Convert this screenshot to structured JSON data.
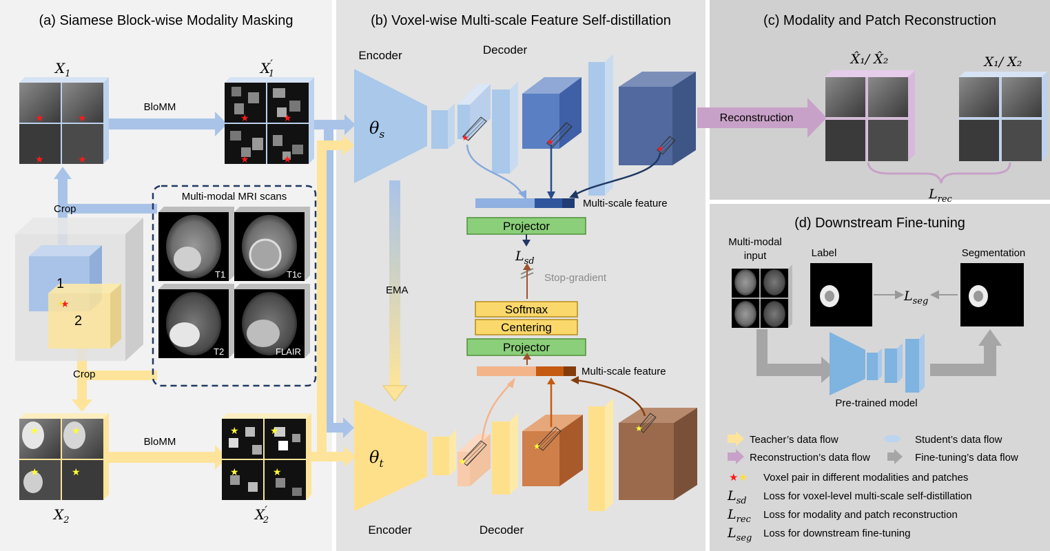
{
  "panels": {
    "a": {
      "title": "(a) Siamese Block-wise Modality Masking"
    },
    "b": {
      "title": "(b) Voxel-wise Multi-scale Feature Self-distillation"
    },
    "c": {
      "title": "(c) Modality and Patch Reconstruction"
    },
    "d": {
      "title": "(d) Downstream Fine-tuning"
    }
  },
  "labels": {
    "x1": "X",
    "x1_sub": "1",
    "x1p": "X",
    "x1p_sub": "1",
    "x1p_prime": "′",
    "x2": "X",
    "x2_sub": "2",
    "x2p": "X",
    "x2p_sub": "2",
    "x2p_prime": "′",
    "blomm_top": "BloMM",
    "blomm_bottom": "BloMM",
    "crop_top": "Crop",
    "crop_bottom": "Crop",
    "crop_region_1": "1",
    "crop_region_2": "2",
    "mri_title": "Multi-modal MRI scans",
    "mri_t1": "T1",
    "mri_t1c": "T1c",
    "mri_t2": "T2",
    "mri_flair": "FLAIR",
    "encoder_top": "Encoder",
    "decoder_top": "Decoder",
    "encoder_bottom": "Encoder",
    "decoder_bottom": "Decoder",
    "theta_s": "θ",
    "theta_s_sub": "s",
    "theta_t": "θ",
    "theta_t_sub": "t",
    "ema": "EMA",
    "ms_feature_top": "Multi-scale feature",
    "ms_feature_bottom": "Multi-scale feature",
    "projector_top": "Projector",
    "projector_bottom": "Projector",
    "softmax": "Softmax",
    "centering": "Centering",
    "lsd": "L",
    "lsd_sub": "sd",
    "stop_gradient": "Stop-gradient",
    "reconstruction": "Reconstruction",
    "xhat": "X̂₁/ X̂₂",
    "xorig": "X₁/ X₂",
    "lrec": "L",
    "lrec_sub": "rec",
    "mm_input_1": "Multi-modal",
    "mm_input_2": "input",
    "label": "Label",
    "segmentation": "Segmentation",
    "lseg": "L",
    "lseg_sub": "seg",
    "pretrained": "Pre-trained model"
  },
  "legend": {
    "teacher": "Teacher’s data flow",
    "student": "Student’s data flow",
    "recon": "Reconstruction’s data flow",
    "finetune": "Fine-tuning’s data flow",
    "voxel_pair": "Voxel pair in different modalities and patches",
    "lsd_sym": "L",
    "lsd_sub": "sd",
    "lsd_desc": "Loss for voxel-level multi-scale self-distillation",
    "lrec_sym": "L",
    "lrec_sub": "rec",
    "lrec_desc": "Loss for modality and patch reconstruction",
    "lseg_sym": "L",
    "lseg_sub": "seg",
    "lseg_desc": "Loss for downstream fine-tuning"
  },
  "colors": {
    "student": "#9dbbe6",
    "teacher": "#fde49a",
    "recon": "#c7a1c7",
    "finetune": "#a6a6a6",
    "projector": "#8ccf7a",
    "softmax": "#fbd86b",
    "star_red": "#ff1a1a",
    "star_yellow": "#ffff33"
  }
}
